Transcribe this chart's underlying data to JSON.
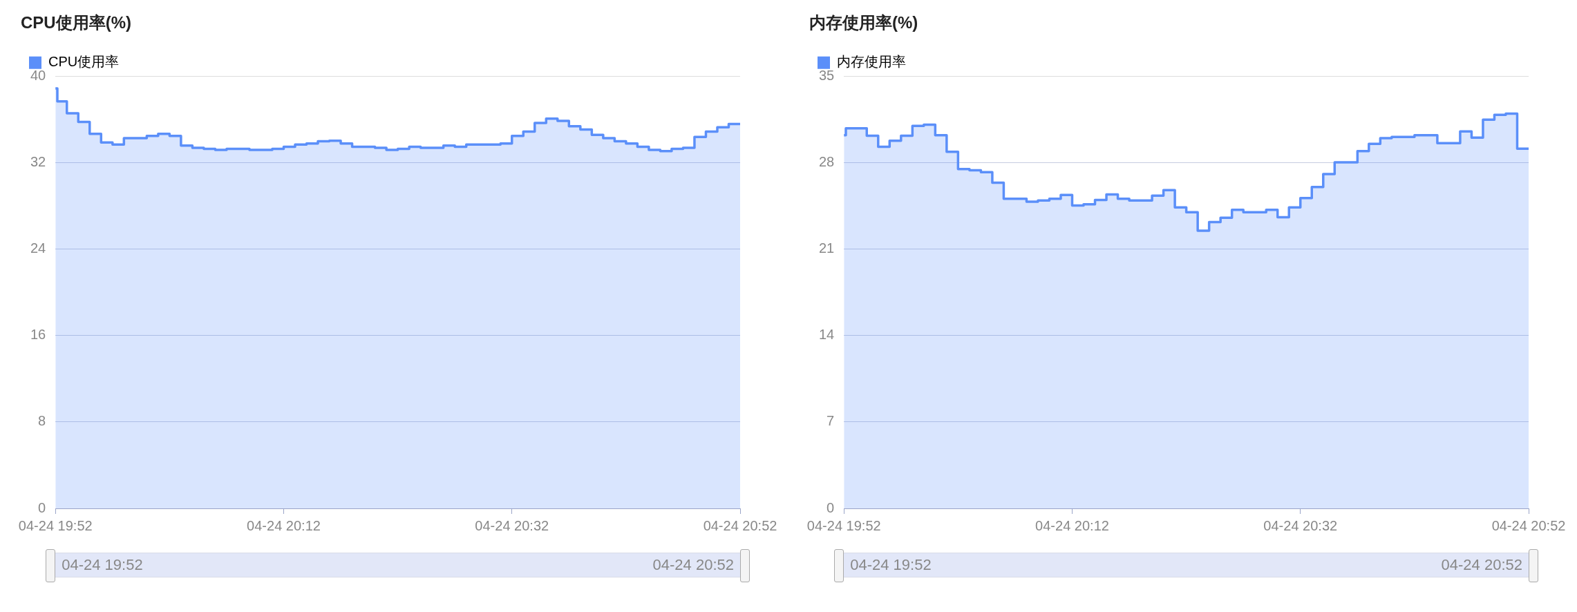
{
  "chart_data": [
    {
      "type": "step",
      "title": "CPU使用率(%)",
      "legend": "top left",
      "grid": "y",
      "xlim": [
        "--04-24T19:52",
        "--04-24T20:52"
      ],
      "xticks": [
        {
          "value": "--04-24T19:52",
          "label": "04-24 19:52"
        },
        {
          "value": "--04-24T20:12",
          "label": "04-24 20:12"
        },
        {
          "value": "--04-24T20:32",
          "label": "04-24 20:32"
        },
        {
          "value": "--04-24T20:52",
          "label": "04-24 20:52"
        }
      ],
      "ylim": [
        0,
        40
      ],
      "yticks": [
        0,
        8,
        16,
        24,
        32,
        40
      ],
      "x": [
        "--04-24T19:52",
        "--04-24T19:52:10",
        "--04-24T19:53",
        "--04-24T19:54",
        "--04-24T19:55",
        "--04-24T19:56",
        "--04-24T19:57",
        "--04-24T19:58",
        "--04-24T20:00",
        "--04-24T20:01",
        "--04-24T20:02",
        "--04-24T20:03",
        "--04-24T20:04",
        "--04-24T20:05",
        "--04-24T20:06",
        "--04-24T20:07",
        "--04-24T20:09",
        "--04-24T20:11",
        "--04-24T20:12",
        "--04-24T20:13",
        "--04-24T20:14",
        "--04-24T20:15",
        "--04-24T20:16",
        "--04-24T20:17",
        "--04-24T20:18",
        "--04-24T20:20",
        "--04-24T20:21",
        "--04-24T20:22",
        "--04-24T20:23",
        "--04-24T20:24",
        "--04-24T20:26",
        "--04-24T20:27",
        "--04-24T20:28",
        "--04-24T20:30",
        "--04-24T20:31",
        "--04-24T20:32",
        "--04-24T20:33",
        "--04-24T20:34",
        "--04-24T20:35",
        "--04-24T20:36",
        "--04-24T20:37",
        "--04-24T20:38",
        "--04-24T20:39",
        "--04-24T20:40",
        "--04-24T20:41",
        "--04-24T20:42",
        "--04-24T20:43",
        "--04-24T20:44",
        "--04-24T20:45",
        "--04-24T20:46",
        "--04-24T20:47",
        "--04-24T20:48",
        "--04-24T20:49",
        "--04-24T20:50",
        "--04-24T20:51",
        "--04-24T20:52"
      ],
      "series": [
        {
          "name": "CPU使用率",
          "color": "#5b8ff9",
          "values": [
            38.9,
            37.7,
            36.6,
            35.8,
            34.7,
            33.9,
            33.7,
            34.3,
            34.5,
            34.7,
            34.5,
            33.6,
            33.4,
            33.3,
            33.2,
            33.3,
            33.2,
            33.3,
            33.5,
            33.7,
            33.8,
            34.0,
            34.05,
            33.8,
            33.5,
            33.4,
            33.2,
            33.3,
            33.5,
            33.4,
            33.6,
            33.5,
            33.7,
            33.7,
            33.8,
            34.5,
            34.9,
            35.7,
            36.1,
            35.9,
            35.4,
            35.1,
            34.6,
            34.3,
            34.0,
            33.8,
            33.5,
            33.2,
            33.1,
            33.3,
            33.4,
            34.4,
            34.9,
            35.3,
            35.6,
            35.6
          ]
        }
      ]
    },
    {
      "type": "step",
      "title": "内存使用率(%)",
      "legend": "top left",
      "grid": "y",
      "xlim": [
        "--04-24T19:52",
        "--04-24T20:52"
      ],
      "xticks": [
        {
          "value": "--04-24T19:52",
          "label": "04-24 19:52"
        },
        {
          "value": "--04-24T20:12",
          "label": "04-24 20:12"
        },
        {
          "value": "--04-24T20:32",
          "label": "04-24 20:32"
        },
        {
          "value": "--04-24T20:52",
          "label": "04-24 20:52"
        }
      ],
      "ylim": [
        0,
        35
      ],
      "yticks": [
        0,
        7,
        14,
        21,
        28,
        35
      ],
      "x": [
        "--04-24T19:52",
        "--04-24T19:52:10",
        "--04-24T19:54",
        "--04-24T19:55",
        "--04-24T19:56",
        "--04-24T19:57",
        "--04-24T19:58",
        "--04-24T19:59",
        "--04-24T20:00",
        "--04-24T20:01",
        "--04-24T20:02",
        "--04-24T20:03",
        "--04-24T20:04",
        "--04-24T20:05",
        "--04-24T20:06",
        "--04-24T20:08",
        "--04-24T20:09",
        "--04-24T20:10",
        "--04-24T20:11",
        "--04-24T20:12",
        "--04-24T20:13",
        "--04-24T20:14",
        "--04-24T20:15",
        "--04-24T20:16",
        "--04-24T20:17",
        "--04-24T20:19",
        "--04-24T20:20",
        "--04-24T20:21",
        "--04-24T20:22",
        "--04-24T20:23",
        "--04-24T20:24",
        "--04-24T20:25",
        "--04-24T20:26",
        "--04-24T20:27",
        "--04-24T20:29",
        "--04-24T20:30",
        "--04-24T20:31",
        "--04-24T20:32",
        "--04-24T20:33",
        "--04-24T20:34",
        "--04-24T20:35",
        "--04-24T20:37",
        "--04-24T20:38",
        "--04-24T20:39",
        "--04-24T20:40",
        "--04-24T20:42",
        "--04-24T20:44",
        "--04-24T20:46",
        "--04-24T20:47",
        "--04-24T20:48",
        "--04-24T20:49",
        "--04-24T20:50",
        "--04-24T20:51",
        "--04-24T20:52"
      ],
      "series": [
        {
          "name": "内存使用率",
          "color": "#5b8ff9",
          "values": [
            30.25,
            30.8,
            30.2,
            29.3,
            29.8,
            30.2,
            31.0,
            31.1,
            30.25,
            28.9,
            27.5,
            27.4,
            27.25,
            26.4,
            25.1,
            24.85,
            24.95,
            25.1,
            25.4,
            24.55,
            24.65,
            25.0,
            25.45,
            25.1,
            24.95,
            25.35,
            25.8,
            24.4,
            24.0,
            22.5,
            23.2,
            23.55,
            24.2,
            24.0,
            24.2,
            23.6,
            24.4,
            25.15,
            26.05,
            27.1,
            28.05,
            28.95,
            29.55,
            30.0,
            30.1,
            30.25,
            29.6,
            30.55,
            30.05,
            31.5,
            31.9,
            32.0,
            29.15,
            29.15
          ]
        }
      ]
    }
  ]
}
